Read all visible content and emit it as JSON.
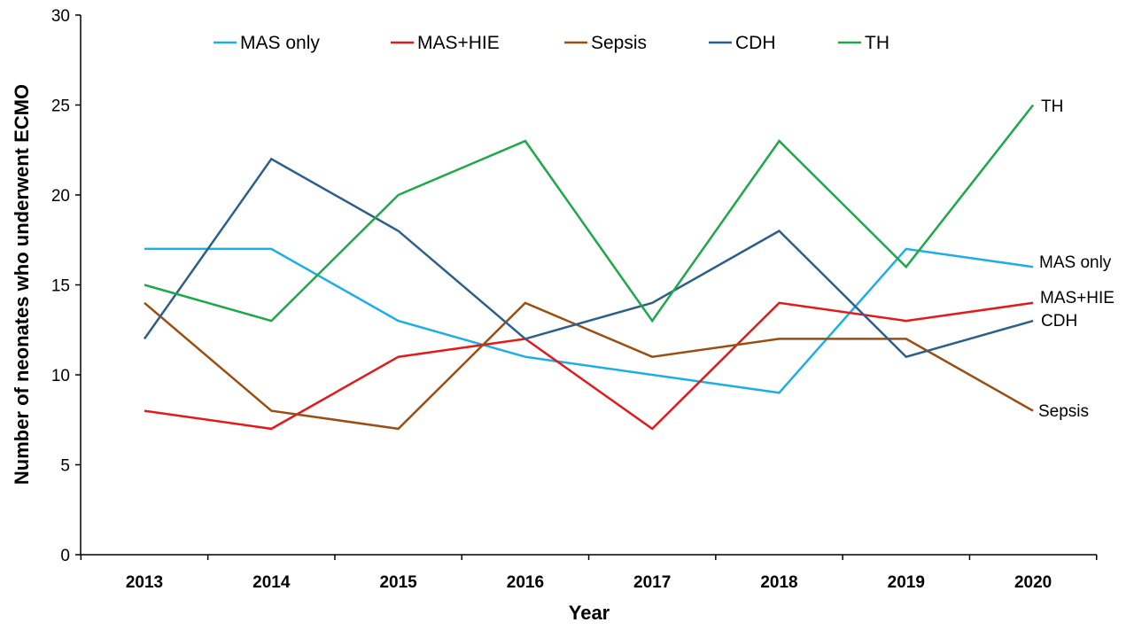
{
  "chart_data": {
    "type": "line",
    "title": "",
    "xlabel": "Year",
    "ylabel": "Number of neonates who underwent ECMO",
    "ylim": [
      0,
      30
    ],
    "yticks": [
      0,
      5,
      10,
      15,
      20,
      25,
      30
    ],
    "categories": [
      "2013",
      "2014",
      "2015",
      "2016",
      "2017",
      "2018",
      "2019",
      "2020"
    ],
    "grid": false,
    "legend": {
      "position": "top",
      "entries": [
        "MAS only",
        "MAS+HIE",
        "Sepsis",
        "CDH",
        "TH"
      ]
    },
    "series": [
      {
        "name": "MAS only",
        "color": "#1EAEE6",
        "values": [
          17,
          17,
          13,
          11,
          10,
          9,
          17,
          16
        ],
        "end_label": "MAS only"
      },
      {
        "name": "MAS+HIE",
        "color": "#E31A1C",
        "values": [
          8,
          7,
          11,
          12,
          7,
          14,
          13,
          14
        ],
        "end_label": "MAS+HIE"
      },
      {
        "name": "Sepsis",
        "color": "#9A4E12",
        "values": [
          14,
          8,
          7,
          14,
          11,
          12,
          12,
          8
        ],
        "end_label": "Sepsis"
      },
      {
        "name": "CDH",
        "color": "#2C5F8A",
        "values": [
          12,
          22,
          18,
          12,
          14,
          18,
          11,
          13
        ],
        "end_label": "CDH"
      },
      {
        "name": "TH",
        "color": "#1EA84A",
        "values": [
          15,
          13,
          20,
          23,
          13,
          23,
          16,
          25
        ],
        "end_label": "TH"
      }
    ]
  }
}
